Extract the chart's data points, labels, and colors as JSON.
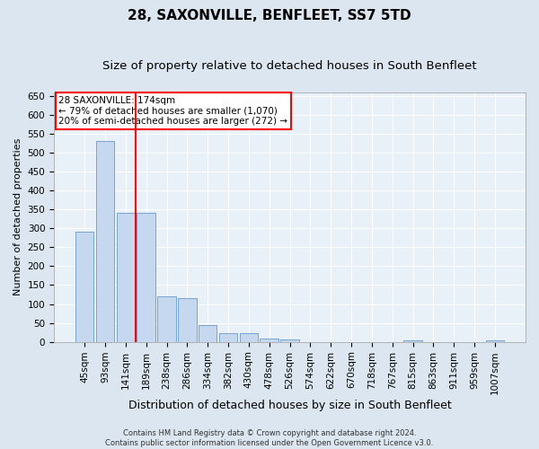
{
  "title": "28, SAXONVILLE, BENFLEET, SS7 5TD",
  "subtitle": "Size of property relative to detached houses in South Benfleet",
  "xlabel": "Distribution of detached houses by size in South Benfleet",
  "ylabel": "Number of detached properties",
  "footer_line1": "Contains HM Land Registry data © Crown copyright and database right 2024.",
  "footer_line2": "Contains public sector information licensed under the Open Government Licence v3.0.",
  "categories": [
    "45sqm",
    "93sqm",
    "141sqm",
    "189sqm",
    "238sqm",
    "286sqm",
    "334sqm",
    "382sqm",
    "430sqm",
    "478sqm",
    "526sqm",
    "574sqm",
    "622sqm",
    "670sqm",
    "718sqm",
    "767sqm",
    "815sqm",
    "863sqm",
    "911sqm",
    "959sqm",
    "1007sqm"
  ],
  "values": [
    290,
    530,
    340,
    340,
    120,
    115,
    45,
    22,
    22,
    10,
    7,
    0,
    0,
    0,
    0,
    0,
    5,
    0,
    0,
    0,
    3
  ],
  "bar_color": "#c5d8f0",
  "bar_edge_color": "#6699cc",
  "vline_x_idx": 3,
  "vline_color": "red",
  "annotation_text": "28 SAXONVILLE: 174sqm\n← 79% of detached houses are smaller (1,070)\n20% of semi-detached houses are larger (272) →",
  "annotation_box_color": "red",
  "ylim": [
    0,
    660
  ],
  "yticks": [
    0,
    50,
    100,
    150,
    200,
    250,
    300,
    350,
    400,
    450,
    500,
    550,
    600,
    650
  ],
  "bg_color": "#dce6f0",
  "plot_bg_color": "#e8f0f8",
  "grid_color": "white",
  "title_fontsize": 11,
  "subtitle_fontsize": 9.5,
  "tick_fontsize": 7.5,
  "xlabel_fontsize": 9,
  "ylabel_fontsize": 8,
  "annotation_fontsize": 7.5,
  "footer_fontsize": 6
}
